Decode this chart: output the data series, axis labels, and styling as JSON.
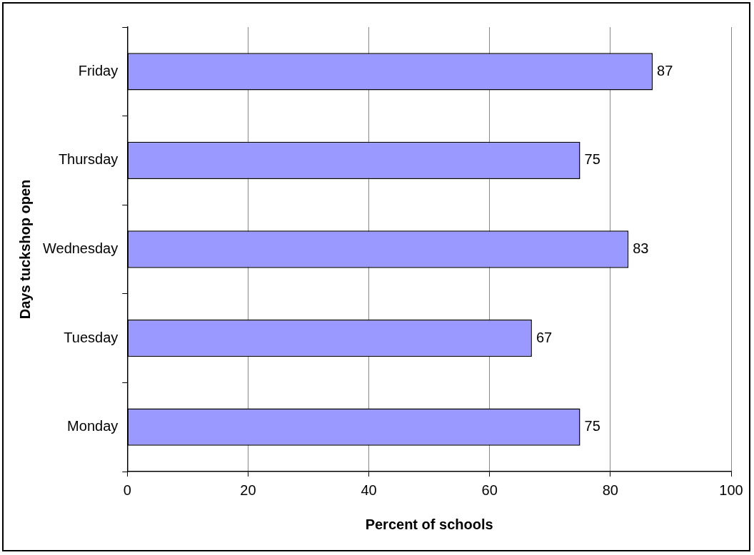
{
  "chart_data": {
    "type": "bar",
    "orientation": "horizontal",
    "categories": [
      "Friday",
      "Thursday",
      "Wednesday",
      "Tuesday",
      "Monday"
    ],
    "values": [
      87,
      75,
      83,
      67,
      75
    ],
    "color": "#9999ff",
    "xlim": [
      0,
      100
    ],
    "xticks": [
      0,
      20,
      40,
      60,
      80,
      100
    ],
    "xlabel": "Percent of schools",
    "ylabel": "Days tuckshop open",
    "grid": "x",
    "legend": false,
    "data_labels": true
  }
}
